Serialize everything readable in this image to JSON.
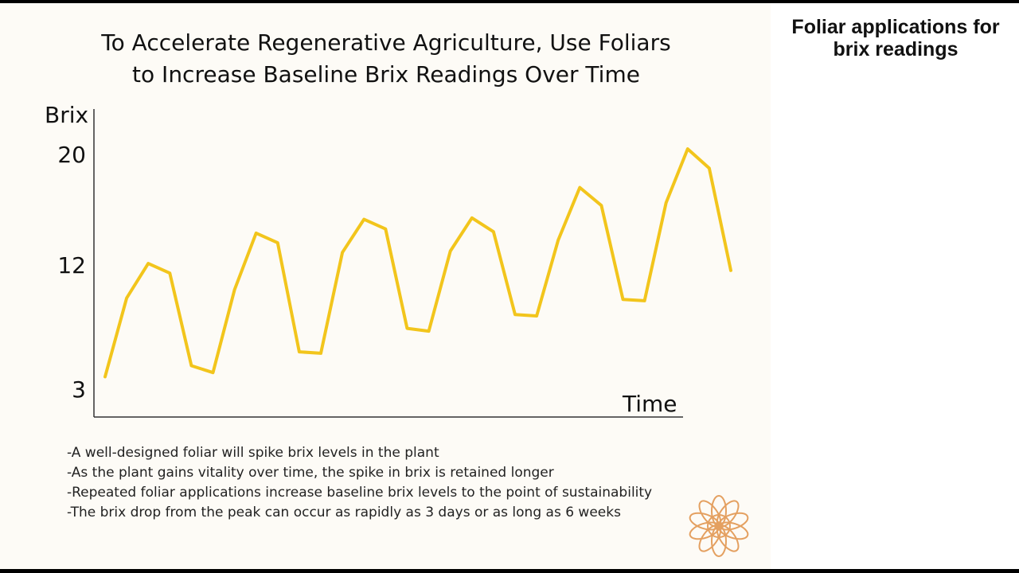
{
  "slide": {
    "title_line1": "To Accelerate Regenerative Agriculture, Use Foliars",
    "title_line2": "to Increase Baseline Brix Readings Over Time"
  },
  "side_panel": {
    "title_line1": "Foliar applications for",
    "title_line2": "brix readings"
  },
  "chart_data": {
    "type": "line",
    "title": "",
    "xlabel": "Time",
    "ylabel": "Brix",
    "y_ticks": [
      3,
      12,
      20
    ],
    "ylim": [
      3,
      20
    ],
    "series": [
      {
        "values": [
          3.9,
          9.6,
          12.1,
          11.4,
          4.7,
          4.2,
          10.2,
          14.3,
          13.6,
          5.7,
          5.6,
          12.9,
          15.3,
          14.6,
          7.4,
          7.2,
          13.0,
          15.4,
          14.4,
          8.4,
          8.3,
          13.8,
          17.6,
          16.3,
          9.5,
          9.4,
          16.5,
          20.4,
          19.0,
          11.6
        ]
      }
    ],
    "line_color": "#f2c51c",
    "grid": false,
    "legend": "none"
  },
  "notes": [
    "-A well-designed foliar will spike brix levels in the plant",
    "-As the plant gains vitality over time, the spike in brix is retained longer",
    "-Repeated foliar applications increase baseline brix levels to the point of sustainability",
    "-The brix drop from the peak can occur as rapidly as 3 days or as long as 6 weeks"
  ],
  "logo": {
    "icon": "flower-logo-icon",
    "color": "#e4a060"
  }
}
